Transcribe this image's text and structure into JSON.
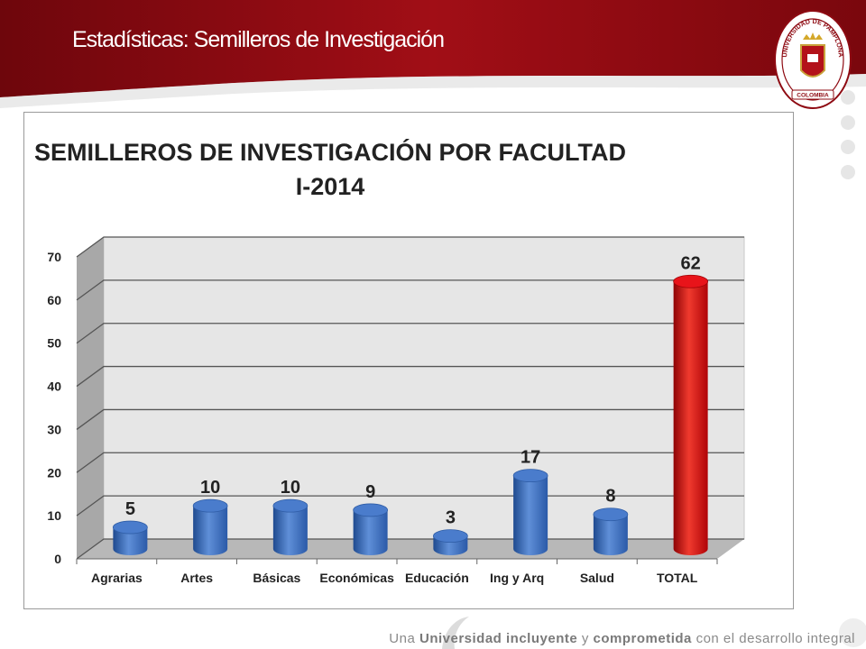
{
  "slide": {
    "title": "Estadísticas: Semilleros de Investigación",
    "tagline": {
      "p1": "Una ",
      "b1": "Universidad incluyente",
      "p2": " y ",
      "b2": "comprometida",
      "p3": " con el desarrollo integral"
    },
    "logo": {
      "ring_text": "UNIVERSIDAD DE PAMPLONA",
      "ribbon_text": "COLOMBIA"
    }
  },
  "colors": {
    "banner": "#8e0a12",
    "bar_blue": "#3b6cc0",
    "bar_red": "#d4060a",
    "wall": "#e6e6e6",
    "floor": "#b8b8b8"
  },
  "chart_data": {
    "type": "bar",
    "title_line1": "SEMILLEROS DE INVESTIGACIÓN POR FACULTAD",
    "title_line2": "I-2014",
    "categories": [
      "Agrarias",
      "Artes",
      "Básicas",
      "Económicas",
      "Educación",
      "Ing y Arq",
      "Salud",
      "TOTAL"
    ],
    "values": [
      5,
      10,
      10,
      9,
      3,
      17,
      8,
      62
    ],
    "highlight": "TOTAL",
    "ylim": [
      0,
      70
    ],
    "yticks": [
      0,
      10,
      20,
      30,
      40,
      50,
      60,
      70
    ],
    "grid": true,
    "legend": "none",
    "xlabel": "",
    "ylabel": ""
  }
}
